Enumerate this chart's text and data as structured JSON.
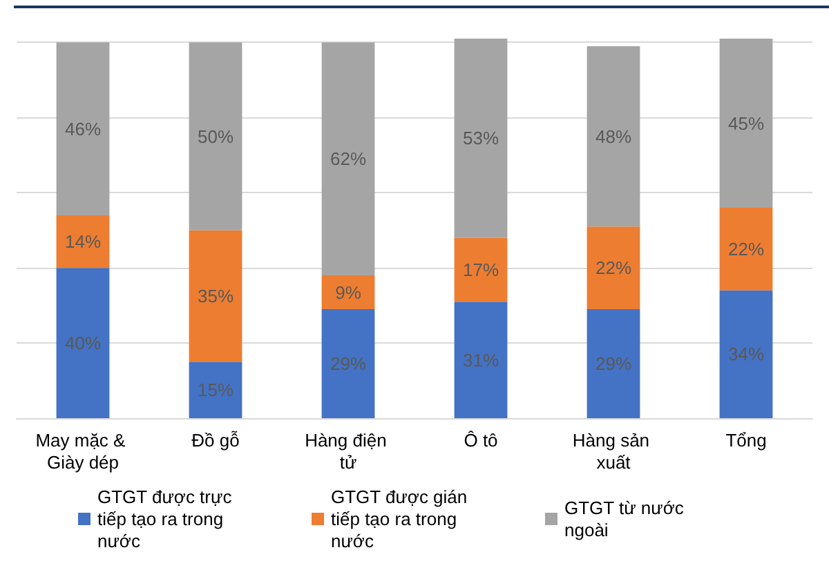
{
  "chart_data": {
    "type": "bar",
    "stacked": true,
    "categories": [
      "May mặc & Giày dép",
      "Đồ gỗ",
      "Hàng điện tử",
      "Ô tô",
      "Hàng sản xuất",
      "Tổng"
    ],
    "series": [
      {
        "name": "GTGT được trực tiếp tạo ra trong nước",
        "color": "#4472c4",
        "values": [
          40,
          15,
          29,
          31,
          29,
          34
        ],
        "value_labels": [
          "40%",
          "15%",
          "29%",
          "31%",
          "29%",
          "34%"
        ]
      },
      {
        "name": "GTGT được gián tiếp tạo ra trong nước",
        "color": "#ed7d31",
        "values": [
          14,
          35,
          9,
          17,
          22,
          22
        ],
        "value_labels": [
          "14%",
          "35%",
          "9%",
          "17%",
          "22%",
          "22%"
        ]
      },
      {
        "name": "GTGT từ nước ngoài",
        "color": "#a5a5a5",
        "values": [
          46,
          50,
          62,
          53,
          48,
          45
        ],
        "value_labels": [
          "46%",
          "50%",
          "62%",
          "53%",
          "48%",
          "45%"
        ]
      }
    ],
    "ylim": [
      0,
      101
    ],
    "yticks": [
      {
        "value": 0,
        "label": null
      },
      {
        "value": 20,
        "label": null
      },
      {
        "value": 40,
        "label": null
      },
      {
        "value": 60,
        "label": null
      },
      {
        "value": 80,
        "label": null
      },
      {
        "value": 100,
        "label": null
      }
    ],
    "tick_labels": "x",
    "grid": "y",
    "legend": "bottom"
  }
}
